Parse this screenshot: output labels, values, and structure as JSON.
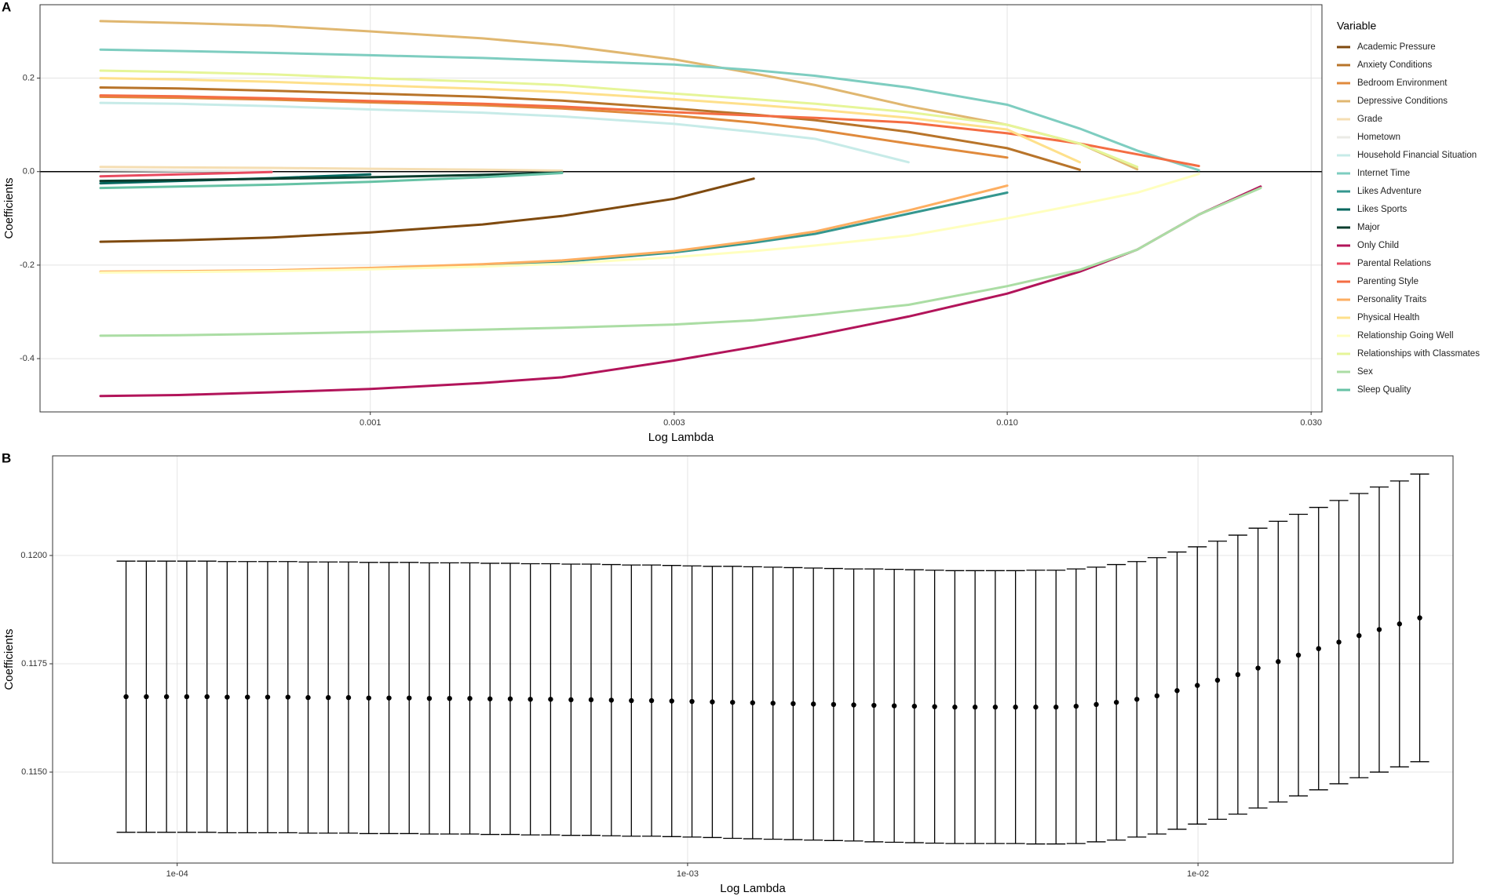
{
  "chart_data": [
    {
      "type": "line",
      "panel": "A",
      "x_label": "Log Lambda",
      "y_label": "Coefficients",
      "legend_title": "Variable",
      "legend": "right",
      "xscale": "log",
      "grid": true,
      "zero_line": 0,
      "xlim": [
        0.000303,
        0.0312
      ],
      "ylim": [
        -0.514,
        0.357
      ],
      "xticks": [
        0.001,
        0.003,
        {
          "value": 0.01,
          "label": "0.010"
        },
        {
          "value": 0.03,
          "label": "0.030"
        }
      ],
      "yticks": [
        -0.4,
        -0.2,
        {
          "value": 0,
          "label": "0.0"
        },
        0.2
      ],
      "x": [
        0.000377,
        0.0005,
        0.0007,
        0.001,
        0.0015,
        0.002,
        0.003,
        0.004,
        0.005,
        0.007,
        0.01,
        0.013,
        0.016,
        0.02,
        0.025
      ],
      "series": [
        {
          "name": "Academic Pressure",
          "color": "#7f4a0f",
          "values": [
            -0.15,
            -0.147,
            -0.141,
            -0.13,
            -0.113,
            -0.095,
            -0.058,
            -0.015,
            null,
            null,
            null,
            null,
            null,
            null,
            null
          ]
        },
        {
          "name": "Anxiety Conditions",
          "color": "#b8742a",
          "values": [
            0.18,
            0.178,
            0.173,
            0.167,
            0.16,
            0.152,
            0.135,
            0.122,
            0.11,
            0.085,
            0.05,
            0.004,
            null,
            null,
            null
          ]
        },
        {
          "name": "Bedroom Environment",
          "color": "#e08a3c",
          "values": [
            0.16,
            0.158,
            0.154,
            0.148,
            0.142,
            0.135,
            0.12,
            0.105,
            0.09,
            0.06,
            0.03,
            null,
            null,
            null,
            null
          ]
        },
        {
          "name": "Depressive Conditions",
          "color": "#e0b770",
          "values": [
            0.322,
            0.318,
            0.312,
            0.3,
            0.285,
            0.27,
            0.24,
            0.21,
            0.185,
            0.14,
            0.1,
            0.06,
            0.005,
            null,
            null
          ]
        },
        {
          "name": "Grade",
          "color": "#f5deb3",
          "values": [
            0.01,
            0.009,
            0.008,
            0.006,
            0.004,
            0.002,
            null,
            null,
            null,
            null,
            null,
            null,
            null,
            null,
            null
          ]
        },
        {
          "name": "Hometown",
          "color": "#ebebe6",
          "values": [
            0.003,
            0.002,
            0.001,
            null,
            null,
            null,
            null,
            null,
            null,
            null,
            null,
            null,
            null,
            null,
            null
          ]
        },
        {
          "name": "Household Financial Situation",
          "color": "#c7ebe8",
          "values": [
            0.147,
            0.145,
            0.14,
            0.133,
            0.126,
            0.118,
            0.102,
            0.085,
            0.07,
            0.02,
            null,
            null,
            null,
            null,
            null
          ]
        },
        {
          "name": "Internet Time",
          "color": "#7ecdc0",
          "values": [
            0.261,
            0.258,
            0.254,
            0.249,
            0.243,
            0.237,
            0.229,
            0.217,
            0.205,
            0.18,
            0.143,
            0.092,
            0.045,
            0.003,
            null
          ]
        },
        {
          "name": "Likes Adventure",
          "color": "#35978f",
          "values": [
            -0.215,
            -0.214,
            -0.212,
            -0.208,
            -0.2,
            -0.193,
            -0.173,
            -0.152,
            -0.133,
            -0.09,
            -0.045,
            null,
            null,
            null,
            null
          ]
        },
        {
          "name": "Likes Sports",
          "color": "#01665e",
          "values": [
            -0.025,
            -0.02,
            -0.014,
            -0.006,
            null,
            null,
            null,
            null,
            null,
            null,
            null,
            null,
            null,
            null,
            null
          ]
        },
        {
          "name": "Major",
          "color": "#0b3d2e",
          "values": [
            -0.02,
            -0.018,
            -0.015,
            -0.012,
            -0.007,
            -0.002,
            null,
            null,
            null,
            null,
            null,
            null,
            null,
            null,
            null
          ]
        },
        {
          "name": "Only Child",
          "color": "#b2145a",
          "values": [
            -0.48,
            -0.478,
            -0.472,
            -0.465,
            -0.452,
            -0.44,
            -0.404,
            -0.375,
            -0.35,
            -0.31,
            -0.261,
            -0.214,
            -0.167,
            -0.092,
            -0.032
          ]
        },
        {
          "name": "Parental Relations",
          "color": "#e84a5f",
          "values": [
            -0.01,
            -0.006,
            -0.001,
            null,
            null,
            null,
            null,
            null,
            null,
            null,
            null,
            null,
            null,
            null,
            null
          ]
        },
        {
          "name": "Parenting Style",
          "color": "#f46d43",
          "values": [
            0.163,
            0.161,
            0.157,
            0.151,
            0.145,
            0.139,
            0.127,
            0.12,
            0.115,
            0.105,
            0.082,
            0.06,
            0.037,
            0.012,
            null
          ]
        },
        {
          "name": "Personality Traits",
          "color": "#fdae61",
          "values": [
            -0.214,
            -0.213,
            -0.211,
            -0.206,
            -0.198,
            -0.19,
            -0.17,
            -0.148,
            -0.128,
            -0.083,
            -0.03,
            null,
            null,
            null,
            null
          ]
        },
        {
          "name": "Physical Health",
          "color": "#fee08b",
          "values": [
            0.2,
            0.197,
            0.192,
            0.185,
            0.177,
            0.17,
            0.155,
            0.143,
            0.133,
            0.115,
            0.09,
            0.02,
            null,
            null,
            null
          ]
        },
        {
          "name": "Relationship Going Well",
          "color": "#ffffbf",
          "values": [
            -0.216,
            -0.215,
            -0.213,
            -0.209,
            -0.203,
            -0.197,
            -0.183,
            -0.17,
            -0.158,
            -0.137,
            -0.1,
            -0.07,
            -0.045,
            -0.005,
            null
          ]
        },
        {
          "name": "Relationships with Classmates",
          "color": "#e6f598",
          "values": [
            0.216,
            0.213,
            0.208,
            0.2,
            0.192,
            0.185,
            0.167,
            0.155,
            0.145,
            0.127,
            0.1,
            0.06,
            0.01,
            null,
            null
          ]
        },
        {
          "name": "Sex",
          "color": "#abdda4",
          "values": [
            -0.351,
            -0.35,
            -0.347,
            -0.343,
            -0.338,
            -0.334,
            -0.327,
            -0.318,
            -0.306,
            -0.285,
            -0.245,
            -0.21,
            -0.167,
            -0.092,
            -0.035
          ]
        },
        {
          "name": "Sleep Quality",
          "color": "#66c2a5",
          "values": [
            -0.035,
            -0.032,
            -0.028,
            -0.022,
            -0.012,
            -0.003,
            null,
            null,
            null,
            null,
            null,
            null,
            null,
            null,
            null
          ]
        }
      ]
    },
    {
      "type": "errorbar",
      "panel": "B",
      "x_label": "Log Lambda",
      "y_label": "Coefficients",
      "xscale": "log",
      "grid": true,
      "color": "#000000",
      "xlim": [
        5.7e-05,
        0.0316
      ],
      "ylim": [
        0.1129,
        0.1223
      ],
      "xticks": [
        {
          "value": 0.0001,
          "label": "1e-04"
        },
        {
          "value": 0.001,
          "label": "1e-03"
        },
        {
          "value": 0.01,
          "label": "1e-02"
        }
      ],
      "yticks": [
        {
          "value": 0.115,
          "label": "0.1150"
        },
        {
          "value": 0.1175,
          "label": "0.1175"
        },
        {
          "value": 0.12,
          "label": "0.1200"
        }
      ],
      "x": [
        7.94e-05,
        8.7e-05,
        9.53e-05,
        0.0001044,
        0.0001144,
        0.0001253,
        0.0001373,
        0.0001504,
        0.0001648,
        0.0001805,
        0.0001977,
        0.0002166,
        0.0002373,
        0.00026,
        0.0002848,
        0.0003119,
        0.0003417,
        0.0003744,
        0.0004101,
        0.0004493,
        0.000492,
        0.000539,
        0.000591,
        0.000647,
        0.000709,
        0.000776,
        0.00085,
        0.000931,
        0.00102,
        0.001118,
        0.001225,
        0.001341,
        0.00147,
        0.00161,
        0.001764,
        0.001932,
        0.002116,
        0.002318,
        0.00254,
        0.002782,
        0.003048,
        0.003339,
        0.003658,
        0.004007,
        0.00439,
        0.00481,
        0.00527,
        0.00577,
        0.00632,
        0.00692,
        0.00759,
        0.00831,
        0.0091,
        0.00997,
        0.01092,
        0.01197,
        0.01311,
        0.01436,
        0.01573,
        0.01723,
        0.01888,
        0.02068,
        0.02265,
        0.02482,
        0.02719
      ],
      "values": [
        0.11674,
        0.11674,
        0.11674,
        0.11674,
        0.11674,
        0.11673,
        0.11673,
        0.11673,
        0.11673,
        0.11672,
        0.11672,
        0.11672,
        0.11671,
        0.11671,
        0.11671,
        0.1167,
        0.1167,
        0.1167,
        0.11669,
        0.11669,
        0.11668,
        0.11668,
        0.11667,
        0.11667,
        0.11666,
        0.11665,
        0.11665,
        0.11664,
        0.11663,
        0.11662,
        0.11661,
        0.1166,
        0.11659,
        0.11658,
        0.11657,
        0.11656,
        0.11655,
        0.11654,
        0.11653,
        0.11652,
        0.11651,
        0.1165,
        0.1165,
        0.1165,
        0.1165,
        0.1165,
        0.1165,
        0.11652,
        0.11656,
        0.11661,
        0.11668,
        0.11676,
        0.11688,
        0.117,
        0.11712,
        0.11725,
        0.1174,
        0.11755,
        0.1177,
        0.11785,
        0.118,
        0.11815,
        0.11829,
        0.11842,
        0.11856
      ],
      "errors": [
        0.00313,
        0.00313,
        0.00313,
        0.00313,
        0.00313,
        0.00313,
        0.00313,
        0.00313,
        0.00313,
        0.00313,
        0.00313,
        0.00313,
        0.00313,
        0.00313,
        0.00313,
        0.00313,
        0.00313,
        0.00313,
        0.00313,
        0.00313,
        0.00313,
        0.00313,
        0.00313,
        0.00313,
        0.00313,
        0.00313,
        0.00313,
        0.00313,
        0.00313,
        0.00313,
        0.00314,
        0.00314,
        0.00314,
        0.00314,
        0.00314,
        0.00314,
        0.00314,
        0.00315,
        0.00315,
        0.00315,
        0.00315,
        0.00315,
        0.00315,
        0.00315,
        0.00315,
        0.00316,
        0.00316,
        0.00317,
        0.00317,
        0.00318,
        0.00318,
        0.00319,
        0.0032,
        0.0032,
        0.00321,
        0.00322,
        0.00323,
        0.00324,
        0.00325,
        0.00326,
        0.00327,
        0.00328,
        0.00329,
        0.0033,
        0.00332
      ]
    }
  ]
}
